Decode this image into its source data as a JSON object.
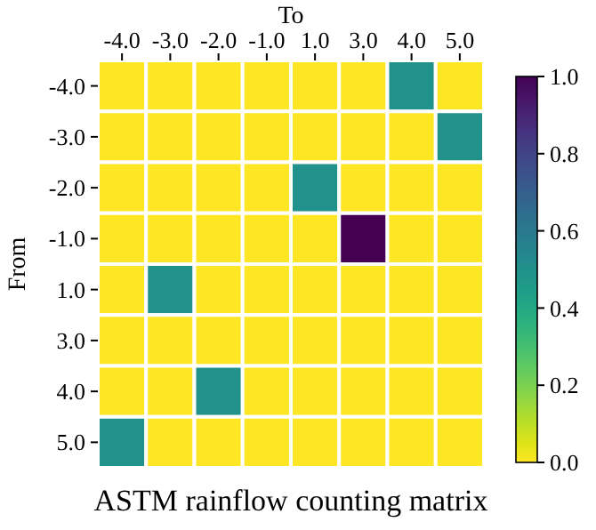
{
  "chart_data": {
    "type": "heatmap",
    "title": "ASTM rainflow counting matrix",
    "xlabel": "To",
    "ylabel": "From",
    "categories": [
      "-4.0",
      "-3.0",
      "-2.0",
      "-1.0",
      "1.0",
      "3.0",
      "4.0",
      "5.0"
    ],
    "y_categories": [
      "-4.0",
      "-3.0",
      "-2.0",
      "-1.0",
      "1.0",
      "3.0",
      "4.0",
      "5.0"
    ],
    "cells": [
      [
        0,
        0,
        0,
        0,
        0,
        0,
        0.5,
        0
      ],
      [
        0,
        0,
        0,
        0,
        0,
        0,
        0,
        0.5
      ],
      [
        0,
        0,
        0,
        0,
        0.5,
        0,
        0,
        0
      ],
      [
        0,
        0,
        0,
        0,
        0,
        1,
        0,
        0
      ],
      [
        0,
        0.5,
        0,
        0,
        0,
        0,
        0,
        0
      ],
      [
        0,
        0,
        0,
        0,
        0,
        0,
        0,
        0
      ],
      [
        0,
        0,
        0.5,
        0,
        0,
        0,
        0,
        0
      ],
      [
        0.5,
        0,
        0,
        0,
        0,
        0,
        0,
        0
      ]
    ],
    "clim": [
      0,
      1
    ],
    "cticks": [
      {
        "value": 0,
        "label": "0.0"
      },
      {
        "value": 0.2,
        "label": "0.2"
      },
      {
        "value": 0.4,
        "label": "0.4"
      },
      {
        "value": 0.6,
        "label": "0.6"
      },
      {
        "value": 0.8,
        "label": "0.8"
      },
      {
        "value": 1,
        "label": "1.0"
      }
    ]
  }
}
